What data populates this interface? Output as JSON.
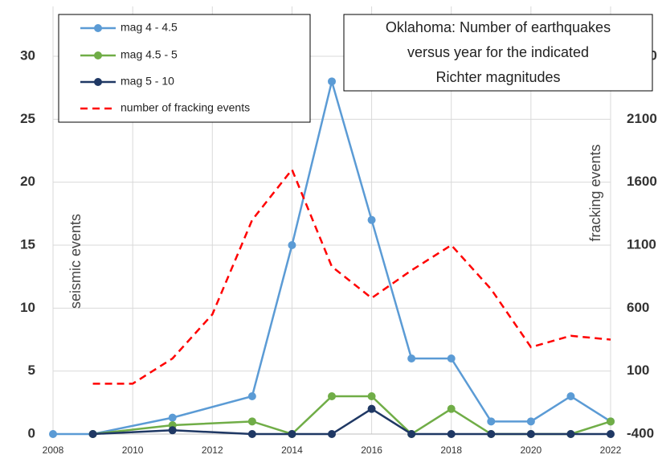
{
  "chart_data": {
    "type": "line",
    "title": [
      "Oklahoma: Number of earthquakes",
      "versus year for the indicated",
      "Richter magnitudes"
    ],
    "y_label": "seismic events",
    "y2_label": "fracking events",
    "xlim": [
      2008,
      2022
    ],
    "xticks": [
      2008,
      2010,
      2012,
      2014,
      2016,
      2018,
      2020,
      2022
    ],
    "ylim": [
      0,
      30
    ],
    "yticks": [
      0,
      5,
      10,
      15,
      20,
      25,
      30
    ],
    "y2lim": [
      -400,
      2600
    ],
    "y2ticks": [
      -400,
      100,
      600,
      1100,
      1600,
      2100,
      2600
    ],
    "grid": true,
    "legend": "upper left",
    "series": [
      {
        "name": "mag 4 - 4.5",
        "color": "#5b9bd5",
        "markers": true,
        "x": [
          2008,
          2009,
          2011,
          2013,
          2014,
          2015,
          2016,
          2017,
          2018,
          2019,
          2020,
          2021,
          2022
        ],
        "values": [
          0,
          0,
          1.3,
          3,
          15,
          28,
          17,
          6,
          6,
          1,
          1,
          3,
          1
        ]
      },
      {
        "name": "mag 4.5 - 5",
        "color": "#70ad47",
        "markers": true,
        "x": [
          2008,
          2009,
          2011,
          2013,
          2014,
          2015,
          2016,
          2017,
          2018,
          2019,
          2020,
          2021,
          2022
        ],
        "values": [
          null,
          0,
          0.7,
          1,
          0,
          3,
          3,
          0,
          2,
          0,
          0,
          0,
          1
        ]
      },
      {
        "name": "mag 5 - 10",
        "color": "#1f3864",
        "markers": true,
        "x": [
          2008,
          2009,
          2011,
          2013,
          2014,
          2015,
          2016,
          2017,
          2018,
          2019,
          2020,
          2021,
          2022
        ],
        "values": [
          null,
          0,
          0.3,
          0,
          0,
          0,
          2,
          0,
          0,
          0,
          0,
          0,
          0
        ]
      },
      {
        "name": "number of fracking events",
        "color": "#ff0000",
        "dashed": true,
        "markers": false,
        "axis": "y2",
        "x": [
          2009,
          2010,
          2011,
          2012,
          2013,
          2014,
          2015,
          2016,
          2017,
          2018,
          2019,
          2020,
          2021,
          2022
        ],
        "values": [
          0,
          0,
          200,
          550,
          1300,
          1700,
          930,
          680,
          900,
          1100,
          750,
          290,
          380,
          350
        ]
      }
    ]
  }
}
